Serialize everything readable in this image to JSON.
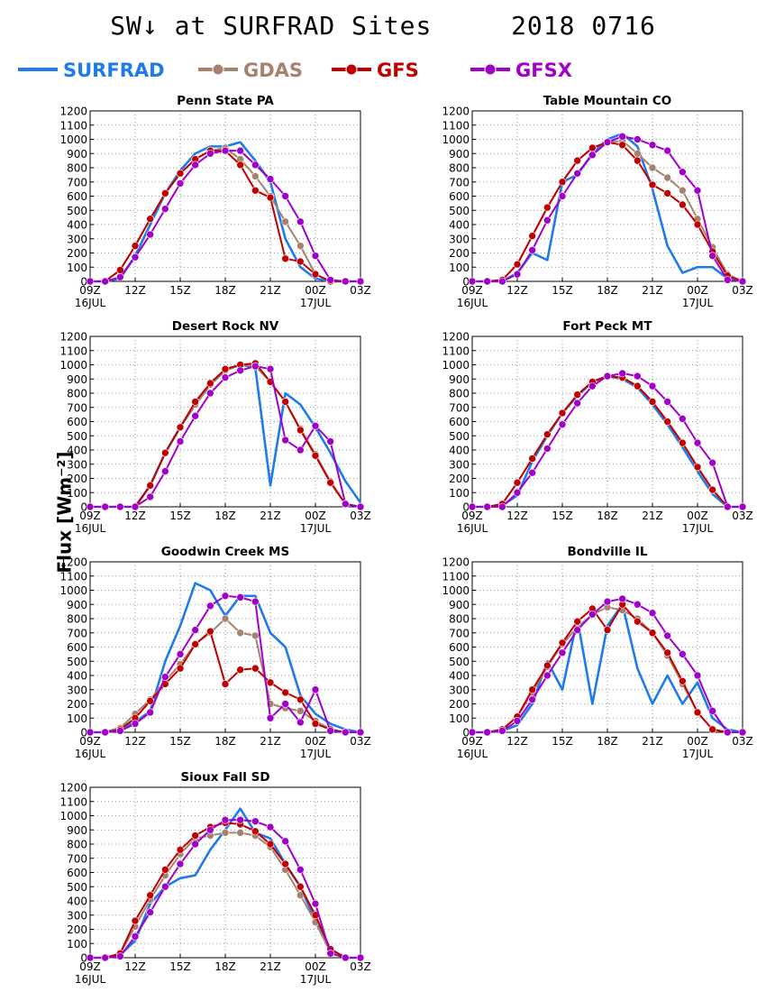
{
  "page": {
    "title_left": "SW↓ at SURFRAD Sites",
    "title_right": "2018 0716",
    "ylabel": "Flux [Wm⁻²]"
  },
  "legend": [
    {
      "name": "SURFRAD",
      "color": "#1f7aeb",
      "marker": false
    },
    {
      "name": "GDAS",
      "color": "#a6826e",
      "marker": true
    },
    {
      "name": "GFS",
      "color": "#c00000",
      "marker": true
    },
    {
      "name": "GFSX",
      "color": "#a000c8",
      "marker": true
    }
  ],
  "chart_data": [
    {
      "type": "line",
      "title": "Penn State PA",
      "x": [
        "09Z",
        "10Z",
        "11Z",
        "12Z",
        "13Z",
        "14Z",
        "15Z",
        "16Z",
        "17Z",
        "18Z",
        "19Z",
        "20Z",
        "21Z",
        "22Z",
        "23Z",
        "00Z",
        "01Z",
        "02Z",
        "03Z"
      ],
      "xticks": [
        "09Z",
        "12Z",
        "15Z",
        "18Z",
        "21Z",
        "00Z",
        "03Z"
      ],
      "xdates": [
        "16JUL",
        "17JUL"
      ],
      "ylim": [
        0,
        1200
      ],
      "yticks": [
        0,
        100,
        200,
        300,
        400,
        500,
        600,
        700,
        800,
        900,
        1000,
        1100,
        1200
      ],
      "series": [
        {
          "name": "SURFRAD",
          "values": [
            0,
            0,
            20,
            180,
            400,
            620,
            780,
            900,
            950,
            950,
            980,
            850,
            700,
            300,
            100,
            20,
            0,
            0,
            0
          ]
        },
        {
          "name": "GDAS",
          "values": [
            0,
            0,
            80,
            250,
            440,
            620,
            760,
            860,
            920,
            940,
            860,
            740,
            600,
            420,
            250,
            50,
            0,
            0,
            0
          ]
        },
        {
          "name": "GFS",
          "values": [
            0,
            0,
            80,
            250,
            440,
            620,
            760,
            860,
            920,
            920,
            820,
            640,
            590,
            160,
            140,
            50,
            0,
            0,
            0
          ]
        },
        {
          "name": "GFSX",
          "values": [
            0,
            0,
            30,
            170,
            330,
            510,
            690,
            820,
            900,
            920,
            920,
            820,
            720,
            600,
            420,
            180,
            10,
            0,
            0
          ]
        }
      ]
    },
    {
      "type": "line",
      "title": "Table Mountain CO",
      "x": [
        "09Z",
        "10Z",
        "11Z",
        "12Z",
        "13Z",
        "14Z",
        "15Z",
        "16Z",
        "17Z",
        "18Z",
        "19Z",
        "20Z",
        "21Z",
        "22Z",
        "23Z",
        "00Z",
        "01Z",
        "02Z",
        "03Z"
      ],
      "xticks": [
        "09Z",
        "12Z",
        "15Z",
        "18Z",
        "21Z",
        "00Z",
        "03Z"
      ],
      "xdates": [
        "16JUL",
        "17JUL"
      ],
      "ylim": [
        0,
        1200
      ],
      "yticks": [
        0,
        100,
        200,
        300,
        400,
        500,
        600,
        700,
        800,
        900,
        1000,
        1100,
        1200
      ],
      "series": [
        {
          "name": "SURFRAD",
          "values": [
            0,
            0,
            0,
            60,
            200,
            150,
            700,
            750,
            900,
            1000,
            1040,
            950,
            650,
            250,
            60,
            100,
            100,
            20,
            0
          ]
        },
        {
          "name": "GDAS",
          "values": [
            0,
            0,
            10,
            120,
            320,
            520,
            700,
            850,
            940,
            980,
            990,
            900,
            800,
            730,
            640,
            440,
            240,
            50,
            0
          ]
        },
        {
          "name": "GFS",
          "values": [
            0,
            0,
            10,
            120,
            320,
            520,
            700,
            850,
            940,
            980,
            960,
            850,
            680,
            620,
            540,
            400,
            210,
            40,
            0
          ]
        },
        {
          "name": "GFSX",
          "values": [
            0,
            0,
            0,
            50,
            220,
            430,
            600,
            760,
            890,
            980,
            1020,
            1000,
            960,
            920,
            770,
            640,
            180,
            10,
            0
          ]
        }
      ]
    },
    {
      "type": "line",
      "title": "Desert Rock NV",
      "x": [
        "09Z",
        "10Z",
        "11Z",
        "12Z",
        "13Z",
        "14Z",
        "15Z",
        "16Z",
        "17Z",
        "18Z",
        "19Z",
        "20Z",
        "21Z",
        "22Z",
        "23Z",
        "00Z",
        "01Z",
        "02Z",
        "03Z"
      ],
      "xticks": [
        "09Z",
        "12Z",
        "15Z",
        "18Z",
        "21Z",
        "00Z",
        "03Z"
      ],
      "xdates": [
        "16JUL",
        "17JUL"
      ],
      "ylim": [
        0,
        1200
      ],
      "yticks": [
        0,
        100,
        200,
        300,
        400,
        500,
        600,
        700,
        800,
        900,
        1000,
        1100,
        1200
      ],
      "series": [
        {
          "name": "SURFRAD",
          "values": [
            0,
            0,
            0,
            0,
            150,
            380,
            560,
            720,
            860,
            960,
            1000,
            980,
            150,
            800,
            720,
            560,
            380,
            180,
            30
          ]
        },
        {
          "name": "GDAS",
          "values": [
            0,
            0,
            0,
            0,
            150,
            380,
            560,
            720,
            860,
            960,
            1000,
            990,
            880,
            740,
            550,
            370,
            180,
            20,
            0
          ]
        },
        {
          "name": "GFS",
          "values": [
            0,
            0,
            0,
            0,
            150,
            380,
            560,
            740,
            870,
            970,
            1000,
            1010,
            880,
            740,
            540,
            360,
            170,
            20,
            0
          ]
        },
        {
          "name": "GFSX",
          "values": [
            0,
            0,
            0,
            0,
            70,
            250,
            460,
            640,
            800,
            910,
            960,
            990,
            970,
            470,
            400,
            570,
            460,
            20,
            0
          ]
        }
      ]
    },
    {
      "type": "line",
      "title": "Fort Peck MT",
      "x": [
        "09Z",
        "10Z",
        "11Z",
        "12Z",
        "13Z",
        "14Z",
        "15Z",
        "16Z",
        "17Z",
        "18Z",
        "19Z",
        "20Z",
        "21Z",
        "22Z",
        "23Z",
        "00Z",
        "01Z",
        "02Z",
        "03Z"
      ],
      "xticks": [
        "09Z",
        "12Z",
        "15Z",
        "18Z",
        "21Z",
        "00Z",
        "03Z"
      ],
      "xdates": [
        "16JUL",
        "17JUL"
      ],
      "ylim": [
        0,
        1200
      ],
      "yticks": [
        0,
        100,
        200,
        300,
        400,
        500,
        600,
        700,
        800,
        900,
        1000,
        1100,
        1200
      ],
      "series": [
        {
          "name": "SURFRAD",
          "values": [
            0,
            0,
            10,
            80,
            320,
            500,
            660,
            780,
            880,
            920,
            900,
            840,
            720,
            580,
            420,
            250,
            90,
            0,
            0
          ]
        },
        {
          "name": "GDAS",
          "values": [
            0,
            0,
            20,
            170,
            340,
            510,
            660,
            790,
            880,
            920,
            910,
            850,
            740,
            600,
            450,
            280,
            120,
            0,
            0
          ]
        },
        {
          "name": "GFS",
          "values": [
            0,
            0,
            20,
            170,
            340,
            510,
            660,
            790,
            880,
            920,
            910,
            850,
            740,
            600,
            450,
            280,
            120,
            0,
            0
          ]
        },
        {
          "name": "GFSX",
          "values": [
            0,
            0,
            0,
            100,
            240,
            410,
            580,
            730,
            850,
            920,
            940,
            920,
            850,
            740,
            620,
            450,
            310,
            0,
            0
          ]
        }
      ]
    },
    {
      "type": "line",
      "title": "Goodwin Creek MS",
      "x": [
        "09Z",
        "10Z",
        "11Z",
        "12Z",
        "13Z",
        "14Z",
        "15Z",
        "16Z",
        "17Z",
        "18Z",
        "19Z",
        "20Z",
        "21Z",
        "22Z",
        "23Z",
        "00Z",
        "01Z",
        "02Z",
        "03Z"
      ],
      "xticks": [
        "09Z",
        "12Z",
        "15Z",
        "18Z",
        "21Z",
        "00Z",
        "03Z"
      ],
      "xdates": [
        "16JUL",
        "17JUL"
      ],
      "ylim": [
        0,
        1200
      ],
      "yticks": [
        0,
        100,
        200,
        300,
        400,
        500,
        600,
        700,
        800,
        900,
        1000,
        1100,
        1200
      ],
      "series": [
        {
          "name": "SURFRAD",
          "values": [
            0,
            0,
            30,
            70,
            150,
            500,
            750,
            1050,
            1000,
            820,
            960,
            960,
            700,
            600,
            260,
            130,
            60,
            20,
            0
          ]
        },
        {
          "name": "GDAS",
          "values": [
            0,
            0,
            30,
            130,
            230,
            360,
            480,
            620,
            700,
            800,
            700,
            680,
            200,
            170,
            150,
            80,
            20,
            0,
            0
          ]
        },
        {
          "name": "GFS",
          "values": [
            0,
            0,
            20,
            100,
            220,
            340,
            450,
            620,
            710,
            340,
            440,
            450,
            350,
            280,
            230,
            60,
            20,
            0,
            0
          ]
        },
        {
          "name": "GFSX",
          "values": [
            0,
            0,
            10,
            60,
            140,
            390,
            550,
            720,
            890,
            960,
            950,
            920,
            100,
            200,
            70,
            300,
            10,
            0,
            0
          ]
        }
      ]
    },
    {
      "type": "line",
      "title": "Bondville IL",
      "x": [
        "09Z",
        "10Z",
        "11Z",
        "12Z",
        "13Z",
        "14Z",
        "15Z",
        "16Z",
        "17Z",
        "18Z",
        "19Z",
        "20Z",
        "21Z",
        "22Z",
        "23Z",
        "00Z",
        "01Z",
        "02Z",
        "03Z"
      ],
      "xticks": [
        "09Z",
        "12Z",
        "15Z",
        "18Z",
        "21Z",
        "00Z",
        "03Z"
      ],
      "xdates": [
        "16JUL",
        "17JUL"
      ],
      "ylim": [
        0,
        1200
      ],
      "yticks": [
        0,
        100,
        200,
        300,
        400,
        500,
        600,
        700,
        800,
        900,
        1000,
        1100,
        1200
      ],
      "series": [
        {
          "name": "SURFRAD",
          "values": [
            0,
            0,
            10,
            50,
            200,
            500,
            300,
            800,
            200,
            750,
            900,
            450,
            200,
            400,
            200,
            350,
            100,
            20,
            0
          ]
        },
        {
          "name": "GDAS",
          "values": [
            0,
            0,
            20,
            110,
            280,
            460,
            620,
            740,
            830,
            880,
            860,
            800,
            700,
            540,
            340,
            140,
            20,
            0,
            0
          ]
        },
        {
          "name": "GFS",
          "values": [
            0,
            0,
            20,
            110,
            300,
            470,
            630,
            780,
            870,
            720,
            900,
            780,
            700,
            560,
            360,
            140,
            20,
            0,
            0
          ]
        },
        {
          "name": "GFSX",
          "values": [
            0,
            0,
            10,
            80,
            230,
            400,
            560,
            720,
            830,
            920,
            940,
            900,
            840,
            680,
            550,
            400,
            150,
            0,
            0
          ]
        }
      ]
    },
    {
      "type": "line",
      "title": "Sioux Fall SD",
      "x": [
        "09Z",
        "10Z",
        "11Z",
        "12Z",
        "13Z",
        "14Z",
        "15Z",
        "16Z",
        "17Z",
        "18Z",
        "19Z",
        "20Z",
        "21Z",
        "22Z",
        "23Z",
        "00Z",
        "01Z",
        "02Z",
        "03Z"
      ],
      "xticks": [
        "09Z",
        "12Z",
        "15Z",
        "18Z",
        "21Z",
        "00Z",
        "03Z"
      ],
      "xdates": [
        "16JUL",
        "17JUL"
      ],
      "ylim": [
        0,
        1200
      ],
      "yticks": [
        0,
        100,
        200,
        300,
        400,
        500,
        600,
        700,
        800,
        900,
        1000,
        1100,
        1200
      ],
      "series": [
        {
          "name": "SURFRAD",
          "values": [
            0,
            0,
            20,
            120,
            380,
            500,
            560,
            580,
            760,
            900,
            1050,
            880,
            840,
            660,
            500,
            260,
            60,
            0,
            0
          ]
        },
        {
          "name": "GDAS",
          "values": [
            0,
            0,
            30,
            220,
            410,
            580,
            730,
            840,
            860,
            880,
            880,
            860,
            780,
            620,
            440,
            250,
            40,
            0,
            0
          ]
        },
        {
          "name": "GFS",
          "values": [
            0,
            0,
            30,
            260,
            440,
            620,
            760,
            860,
            920,
            950,
            940,
            890,
            800,
            660,
            500,
            300,
            60,
            0,
            0
          ]
        },
        {
          "name": "GFSX",
          "values": [
            0,
            0,
            10,
            150,
            320,
            500,
            660,
            800,
            900,
            970,
            970,
            960,
            920,
            820,
            620,
            380,
            30,
            0,
            0
          ]
        }
      ]
    }
  ]
}
